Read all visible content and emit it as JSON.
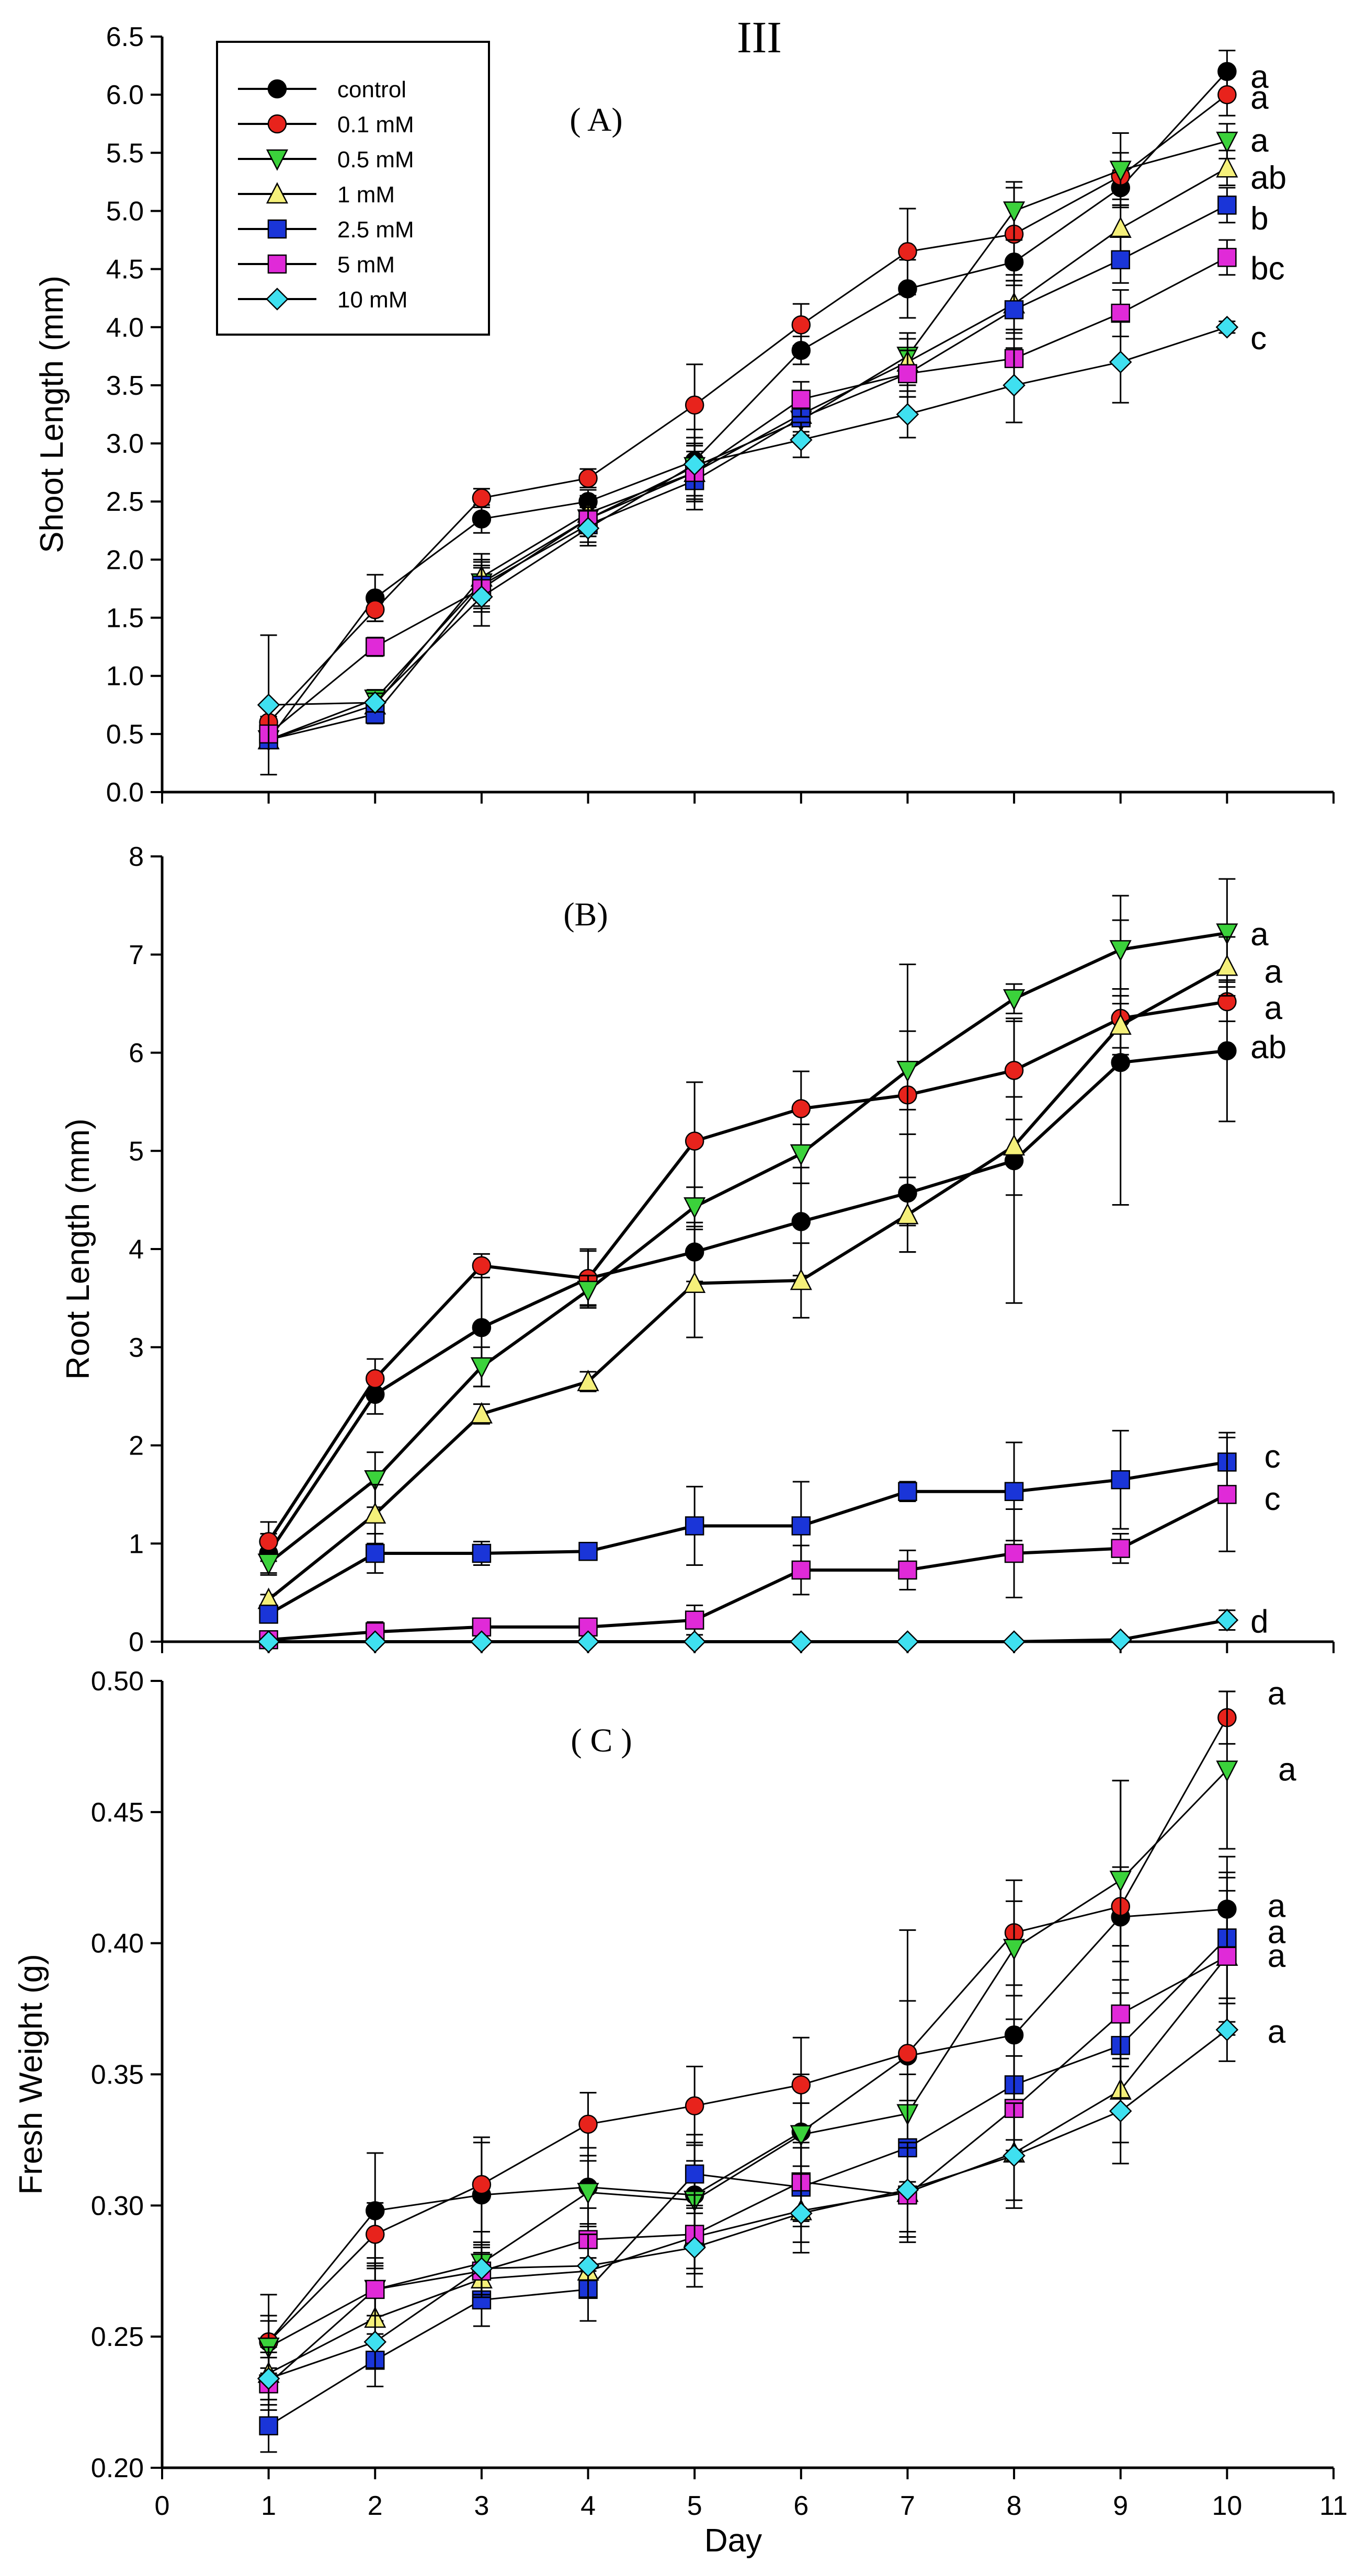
{
  "figure_label": "III",
  "legend": {
    "entries": [
      {
        "label": "control",
        "color": "#000000",
        "marker": "circle"
      },
      {
        "label": "0.1 mM",
        "color": "#e8231c",
        "marker": "circle"
      },
      {
        "label": "0.5 mM",
        "color": "#3bd23b",
        "marker": "triangle-down"
      },
      {
        "label": "1 mM",
        "color": "#f5f07a",
        "marker": "triangle-up"
      },
      {
        "label": "2.5 mM",
        "color": "#1a35d8",
        "marker": "square"
      },
      {
        "label": "5 mM",
        "color": "#e02ad8",
        "marker": "square"
      },
      {
        "label": "10 mM",
        "color": "#3fe0f0",
        "marker": "diamond"
      }
    ]
  },
  "chart_data": [
    {
      "type": "line",
      "panel_label": "( A)",
      "ylabel": "Shoot Length (mm)",
      "xlabel": "",
      "x": [
        1,
        2,
        3,
        4,
        5,
        6,
        7,
        8,
        9,
        10
      ],
      "xlim": [
        0,
        11
      ],
      "ylim": [
        0,
        6.5
      ],
      "yticks": [
        0,
        0.5,
        1,
        1.5,
        2,
        2.5,
        3,
        3.5,
        4,
        4.5,
        5,
        5.5,
        6,
        6.5
      ],
      "ytick_labels": [
        "0.0",
        "0.5",
        "1.0",
        "1.5",
        "2.0",
        "2.5",
        "3.0",
        "3.5",
        "4.0",
        "4.5",
        "5.0",
        "5.5",
        "6.0",
        "6.5"
      ],
      "series": [
        {
          "name": "control",
          "values": [
            0.45,
            1.67,
            2.35,
            2.5,
            2.85,
            3.8,
            4.33,
            4.56,
            5.2,
            6.2
          ],
          "errors": [
            0.05,
            0.2,
            0.12,
            0.1,
            0.2,
            0.12,
            0.25,
            0.2,
            0.15,
            0.18
          ]
        },
        {
          "name": "0.1 mM",
          "values": [
            0.6,
            1.57,
            2.53,
            2.7,
            3.33,
            4.02,
            4.65,
            4.8,
            5.3,
            6.0
          ],
          "errors": [
            0.05,
            0.1,
            0.08,
            0.08,
            0.35,
            0.18,
            0.37,
            0.4,
            0.2,
            0.18
          ]
        },
        {
          "name": "0.5 mM",
          "values": [
            0.45,
            0.8,
            1.8,
            2.35,
            2.8,
            3.2,
            3.75,
            5.0,
            5.35,
            5.6
          ],
          "errors": [
            0.05,
            0.08,
            0.2,
            0.15,
            0.25,
            0.15,
            0.2,
            0.25,
            0.32,
            0.15
          ]
        },
        {
          "name": "1 mM",
          "values": [
            0.45,
            0.75,
            1.85,
            2.4,
            2.75,
            3.25,
            3.7,
            4.2,
            4.85,
            5.37
          ],
          "errors": [
            0.05,
            0.1,
            0.2,
            0.15,
            0.25,
            0.15,
            0.2,
            0.25,
            0.2,
            0.15
          ]
        },
        {
          "name": "2.5 mM",
          "values": [
            0.45,
            0.67,
            1.78,
            2.3,
            2.68,
            3.22,
            3.6,
            4.15,
            4.58,
            5.05
          ],
          "errors": [
            0.05,
            0.08,
            0.2,
            0.15,
            0.25,
            0.15,
            0.2,
            0.25,
            0.2,
            0.15
          ]
        },
        {
          "name": "5 mM",
          "values": [
            0.5,
            1.25,
            1.75,
            2.35,
            2.75,
            3.38,
            3.6,
            3.73,
            4.12,
            4.6
          ],
          "errors": [
            0.05,
            0.08,
            0.2,
            0.15,
            0.25,
            0.15,
            0.2,
            0.25,
            0.2,
            0.15
          ]
        },
        {
          "name": "10 mM",
          "values": [
            0.75,
            0.77,
            1.68,
            2.27,
            2.82,
            3.03,
            3.25,
            3.5,
            3.7,
            4.0
          ],
          "errors": [
            0.6,
            0.08,
            0.25,
            0.15,
            0.3,
            0.15,
            0.2,
            0.32,
            0.35,
            0.05
          ]
        }
      ],
      "annotations": [
        {
          "text": "a",
          "x": 10.22,
          "y": 6.15
        },
        {
          "text": "a",
          "x": 10.22,
          "y": 5.97
        },
        {
          "text": "a",
          "x": 10.22,
          "y": 5.6
        },
        {
          "text": "ab",
          "x": 10.22,
          "y": 5.28
        },
        {
          "text": "b",
          "x": 10.22,
          "y": 4.93
        },
        {
          "text": "bc",
          "x": 10.22,
          "y": 4.5
        },
        {
          "text": "c",
          "x": 10.22,
          "y": 3.9
        }
      ]
    },
    {
      "type": "line",
      "panel_label": "(B)",
      "ylabel": "Root Length (mm)",
      "xlabel": "",
      "x": [
        1,
        2,
        3,
        4,
        5,
        6,
        7,
        8,
        9,
        10
      ],
      "xlim": [
        0,
        11
      ],
      "ylim": [
        0,
        8
      ],
      "yticks": [
        0,
        1,
        2,
        3,
        4,
        5,
        6,
        7,
        8
      ],
      "ytick_labels": [
        "0",
        "1",
        "2",
        "3",
        "4",
        "5",
        "6",
        "7",
        "8"
      ],
      "series": [
        {
          "name": "control",
          "values": [
            0.9,
            2.52,
            3.2,
            3.7,
            3.97,
            4.28,
            4.57,
            4.9,
            5.9,
            6.02
          ],
          "errors": [
            0.2,
            0.2,
            0.6,
            0.3,
            0.3,
            0.55,
            0.6,
            1.45,
            1.45,
            0.72
          ]
        },
        {
          "name": "0.1 mM",
          "values": [
            1.02,
            2.68,
            3.83,
            3.7,
            5.1,
            5.43,
            5.57,
            5.82,
            6.35,
            6.52
          ],
          "errors": [
            0.2,
            0.2,
            0.12,
            0.28,
            0.6,
            0.38,
            1.33,
            0.5,
            0.3,
            0.2
          ]
        },
        {
          "name": "0.5 mM",
          "values": [
            0.8,
            1.65,
            2.8,
            3.58,
            4.43,
            4.97,
            5.82,
            6.55,
            7.05,
            7.22
          ],
          "errors": [
            0.12,
            0.28,
            0.2,
            0.15,
            0.2,
            0.3,
            0.4,
            0.15,
            0.55,
            0.55
          ]
        },
        {
          "name": "1 mM",
          "values": [
            0.43,
            1.3,
            2.32,
            2.65,
            3.65,
            3.68,
            4.35,
            5.05,
            6.28,
            6.88
          ],
          "errors": [
            0.05,
            0.3,
            0.1,
            0.1,
            0.55,
            0.38,
            0.38,
            0.5,
            0.3,
            0.3
          ]
        },
        {
          "name": "2.5 mM",
          "values": [
            0.28,
            0.9,
            0.9,
            0.92,
            1.18,
            1.18,
            1.53,
            1.53,
            1.65,
            1.83
          ],
          "errors": [
            0.05,
            0.2,
            0.12,
            0.04,
            0.4,
            0.45,
            0.1,
            0.5,
            0.5,
            0.3
          ]
        },
        {
          "name": "5 mM",
          "values": [
            0.02,
            0.1,
            0.15,
            0.15,
            0.22,
            0.73,
            0.73,
            0.9,
            0.95,
            1.5
          ],
          "errors": [
            0.01,
            0.1,
            0.05,
            0.05,
            0.15,
            0.25,
            0.2,
            0.45,
            0.15,
            0.58
          ]
        },
        {
          "name": "10 mM",
          "values": [
            0,
            0,
            0,
            0,
            0,
            0,
            0,
            0,
            0.02,
            0.22
          ],
          "errors": [
            0,
            0,
            0,
            0,
            0,
            0,
            0,
            0,
            0.01,
            0.1
          ]
        }
      ],
      "annotations": [
        {
          "text": "a",
          "x": 10.22,
          "y": 7.2
        },
        {
          "text": "a",
          "x": 10.35,
          "y": 6.82
        },
        {
          "text": "a",
          "x": 10.35,
          "y": 6.45
        },
        {
          "text": "ab",
          "x": 10.22,
          "y": 6.05
        },
        {
          "text": "c",
          "x": 10.35,
          "y": 1.88
        },
        {
          "text": "c",
          "x": 10.35,
          "y": 1.45
        },
        {
          "text": "d",
          "x": 10.22,
          "y": 0.2
        }
      ]
    },
    {
      "type": "line",
      "panel_label": "( C )",
      "ylabel": "Fresh Weight (g)",
      "xlabel": "Day",
      "x": [
        1,
        2,
        3,
        4,
        5,
        6,
        7,
        8,
        9,
        10
      ],
      "xlim": [
        0,
        11
      ],
      "ylim": [
        0.2,
        0.5
      ],
      "xticks": [
        0,
        1,
        2,
        3,
        4,
        5,
        6,
        7,
        8,
        9,
        10,
        11
      ],
      "xtick_labels": [
        "0",
        "1",
        "2",
        "3",
        "4",
        "5",
        "6",
        "7",
        "8",
        "9",
        "10",
        "11"
      ],
      "yticks": [
        0.2,
        0.25,
        0.3,
        0.35,
        0.4,
        0.45,
        0.5
      ],
      "ytick_labels": [
        "0.20",
        "0.25",
        "0.30",
        "0.35",
        "0.40",
        "0.45",
        "0.50"
      ],
      "series": [
        {
          "name": "control",
          "values": [
            0.248,
            0.298,
            0.304,
            0.307,
            0.304,
            0.328,
            0.357,
            0.365,
            0.41,
            0.413
          ],
          "errors": [
            0.018,
            0.022,
            0.02,
            0.015,
            0.02,
            0.022,
            0.048,
            0.04,
            0.052,
            0.02
          ]
        },
        {
          "name": "0.1 mM",
          "values": [
            0.248,
            0.289,
            0.308,
            0.331,
            0.338,
            0.346,
            0.358,
            0.404,
            0.414,
            0.486
          ],
          "errors": [
            0.01,
            0.012,
            0.018,
            0.012,
            0.015,
            0.018,
            0.02,
            0.02,
            0.015,
            0.01
          ]
        },
        {
          "name": "0.5 mM",
          "values": [
            0.246,
            0.268,
            0.278,
            0.305,
            0.302,
            0.327,
            0.335,
            0.398,
            0.424,
            0.466
          ],
          "errors": [
            0.01,
            0.012,
            0.012,
            0.012,
            0.015,
            0.012,
            0.015,
            0.018,
            0.038,
            0.03
          ]
        },
        {
          "name": "1 mM",
          "values": [
            0.236,
            0.257,
            0.272,
            0.275,
            0.288,
            0.298,
            0.305,
            0.32,
            0.344,
            0.395
          ],
          "errors": [
            0.01,
            0.01,
            0.01,
            0.01,
            0.012,
            0.012,
            0.015,
            0.018,
            0.02,
            0.03
          ]
        },
        {
          "name": "2.5 mM",
          "values": [
            0.216,
            0.241,
            0.264,
            0.268,
            0.312,
            0.307,
            0.322,
            0.346,
            0.361,
            0.402
          ],
          "errors": [
            0.01,
            0.01,
            0.01,
            0.012,
            0.015,
            0.015,
            0.018,
            0.025,
            0.02,
            0.025
          ]
        },
        {
          "name": "5 mM",
          "values": [
            0.232,
            0.268,
            0.275,
            0.287,
            0.289,
            0.309,
            0.304,
            0.337,
            0.373,
            0.395
          ],
          "errors": [
            0.01,
            0.01,
            0.01,
            0.012,
            0.015,
            0.015,
            0.018,
            0.02,
            0.02,
            0.025
          ]
        },
        {
          "name": "10 mM",
          "values": [
            0.234,
            0.248,
            0.276,
            0.277,
            0.284,
            0.297,
            0.306,
            0.319,
            0.336,
            0.367
          ],
          "errors": [
            0.01,
            0.01,
            0.01,
            0.012,
            0.015,
            0.015,
            0.018,
            0.02,
            0.02,
            0.012
          ]
        }
      ],
      "annotations": [
        {
          "text": "a",
          "x": 10.38,
          "y": 0.495
        },
        {
          "text": "a",
          "x": 10.48,
          "y": 0.466
        },
        {
          "text": "a",
          "x": 10.38,
          "y": 0.414
        },
        {
          "text": "a",
          "x": 10.38,
          "y": 0.404
        },
        {
          "text": "a",
          "x": 10.38,
          "y": 0.395
        },
        {
          "text": "a",
          "x": 10.38,
          "y": 0.366
        }
      ]
    }
  ]
}
